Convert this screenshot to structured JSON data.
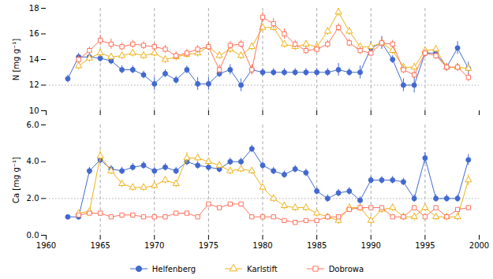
{
  "chart_data": [
    {
      "type": "line",
      "ylabel": "N [mg g⁻¹]",
      "xlim": [
        1960,
        2000
      ],
      "xticks": [
        1960,
        1965,
        1970,
        1975,
        1980,
        1985,
        1990,
        1995,
        2000
      ],
      "ylim": [
        10,
        18
      ],
      "yticks": [
        10,
        12,
        14,
        16,
        18
      ],
      "tick_labels": "y",
      "vlines": [
        1965,
        1970,
        1975,
        1980,
        1985,
        1990,
        1995
      ],
      "hline": 12,
      "series": [
        {
          "name": "Helfenberg",
          "marker": "circle",
          "x": [
            1962,
            1963,
            1964,
            1965,
            1966,
            1967,
            1968,
            1969,
            1970,
            1971,
            1972,
            1973,
            1974,
            1975,
            1976,
            1977,
            1978,
            1979,
            1980,
            1981,
            1982,
            1983,
            1984,
            1985,
            1986,
            1987,
            1988,
            1989,
            1990,
            1991,
            1992,
            1993,
            1994,
            1995,
            1996,
            1997,
            1998,
            1999
          ],
          "values": [
            12.5,
            14.2,
            14.2,
            14.1,
            13.9,
            13.2,
            13.2,
            12.8,
            12.1,
            12.9,
            12.4,
            13.2,
            12.1,
            12.1,
            12.9,
            13.2,
            12.0,
            13.2,
            13.0,
            13.0,
            13.0,
            13.0,
            13.0,
            13.0,
            13.0,
            13.2,
            13.0,
            13.0,
            14.9,
            15.3,
            14.0,
            12.0,
            12.0,
            14.5,
            14.5,
            13.4,
            14.9,
            13.3
          ],
          "errors": [
            0.3,
            0.3,
            0.3,
            0.3,
            0.3,
            0.3,
            0.3,
            0.3,
            0.5,
            0.3,
            0.3,
            0.3,
            0.5,
            0.5,
            0.3,
            0.4,
            0.5,
            0.3,
            0.3,
            0.3,
            0.3,
            0.3,
            0.3,
            0.3,
            0.3,
            0.5,
            0.3,
            0.5,
            0.5,
            0.5,
            0.3,
            0.5,
            0.6,
            0.3,
            0.3,
            0.3,
            0.5,
            0.5
          ]
        },
        {
          "name": "Karlstift",
          "marker": "triangle-open",
          "x": [
            1963,
            1964,
            1965,
            1966,
            1967,
            1968,
            1969,
            1970,
            1971,
            1972,
            1973,
            1974,
            1975,
            1976,
            1977,
            1978,
            1979,
            1980,
            1981,
            1982,
            1983,
            1984,
            1985,
            1986,
            1987,
            1988,
            1989,
            1990,
            1991,
            1992,
            1993,
            1994,
            1995,
            1996,
            1997,
            1998,
            1999
          ],
          "values": [
            13.5,
            14.1,
            14.5,
            14.2,
            14.3,
            14.5,
            14.3,
            14.5,
            14.0,
            14.2,
            14.4,
            14.5,
            15.0,
            14.3,
            14.8,
            14.3,
            15.0,
            16.5,
            16.5,
            15.2,
            15.0,
            15.2,
            15.0,
            16.2,
            17.7,
            16.2,
            15.0,
            15.0,
            15.3,
            14.7,
            13.4,
            13.4,
            14.7,
            14.8,
            13.4,
            13.4,
            13.3
          ],
          "errors": [
            0.3,
            0.3,
            0.3,
            0.3,
            0.3,
            0.3,
            0.3,
            0.3,
            0.3,
            0.3,
            0.3,
            0.3,
            0.3,
            0.3,
            0.3,
            0.3,
            0.3,
            0.3,
            0.3,
            0.3,
            0.3,
            0.3,
            0.3,
            0.3,
            0.3,
            0.3,
            0.3,
            0.3,
            0.3,
            0.3,
            0.3,
            0.3,
            0.3,
            0.3,
            0.3,
            0.3,
            0.3
          ]
        },
        {
          "name": "Dobrowa",
          "marker": "square-open",
          "x": [
            1963,
            1964,
            1965,
            1966,
            1967,
            1968,
            1969,
            1970,
            1971,
            1972,
            1973,
            1974,
            1975,
            1976,
            1977,
            1978,
            1979,
            1980,
            1981,
            1982,
            1983,
            1984,
            1985,
            1986,
            1987,
            1988,
            1989,
            1990,
            1991,
            1992,
            1993,
            1994,
            1995,
            1996,
            1997,
            1998,
            1999
          ],
          "values": [
            14.0,
            14.7,
            15.5,
            15.2,
            15.0,
            15.2,
            15.1,
            15.0,
            14.8,
            14.3,
            14.5,
            14.8,
            15.0,
            13.2,
            15.1,
            15.2,
            13.2,
            17.3,
            16.8,
            16.0,
            15.2,
            14.7,
            14.8,
            15.2,
            16.5,
            15.3,
            14.7,
            14.5,
            15.3,
            15.2,
            13.2,
            12.8,
            14.5,
            14.3,
            13.4,
            13.4,
            12.6
          ],
          "errors": [
            0.3,
            0.3,
            0.4,
            0.4,
            0.3,
            0.3,
            0.3,
            0.3,
            0.3,
            0.3,
            0.3,
            0.3,
            0.3,
            0.4,
            0.3,
            0.3,
            0.4,
            0.4,
            0.4,
            0.4,
            0.3,
            0.3,
            0.3,
            0.3,
            0.3,
            0.3,
            0.3,
            0.3,
            0.4,
            0.3,
            0.3,
            0.3,
            0.3,
            0.3,
            0.3,
            0.3,
            0.3
          ]
        }
      ]
    },
    {
      "type": "line",
      "ylabel": "Ca [mg g⁻¹]",
      "xlim": [
        1960,
        2000
      ],
      "xticks": [
        1960,
        1965,
        1970,
        1975,
        1980,
        1985,
        1990,
        1995,
        2000
      ],
      "ylim": [
        0,
        6
      ],
      "yticks": [
        0,
        2,
        4,
        6
      ],
      "legend": "bottom",
      "vlines": [
        1965,
        1970,
        1975,
        1980,
        1985,
        1990,
        1995
      ],
      "hline": 2,
      "series": [
        {
          "name": "Helfenberg",
          "marker": "circle",
          "x": [
            1962,
            1963,
            1964,
            1965,
            1966,
            1967,
            1968,
            1969,
            1970,
            1971,
            1972,
            1973,
            1974,
            1975,
            1976,
            1977,
            1978,
            1979,
            1980,
            1981,
            1982,
            1983,
            1984,
            1985,
            1986,
            1987,
            1988,
            1989,
            1990,
            1991,
            1992,
            1993,
            1994,
            1995,
            1996,
            1997,
            1998,
            1999
          ],
          "values": [
            1.0,
            1.0,
            3.5,
            4.1,
            3.6,
            3.5,
            3.7,
            3.8,
            3.5,
            3.7,
            3.5,
            4.0,
            3.8,
            3.7,
            3.6,
            4.0,
            4.0,
            4.7,
            3.8,
            3.5,
            3.3,
            3.6,
            3.4,
            2.4,
            2.0,
            2.3,
            2.4,
            1.9,
            3.0,
            3.0,
            3.0,
            2.9,
            2.0,
            4.2,
            2.0,
            2.0,
            2.0,
            4.1
          ],
          "errors": [
            0.1,
            0.1,
            0.2,
            0.2,
            0.2,
            0.2,
            0.2,
            0.2,
            0.2,
            0.2,
            0.2,
            0.2,
            0.2,
            0.2,
            0.2,
            0.2,
            0.2,
            0.2,
            0.2,
            0.2,
            0.2,
            0.2,
            0.2,
            0.2,
            0.2,
            0.2,
            0.2,
            0.2,
            0.2,
            0.2,
            0.2,
            0.2,
            0.2,
            0.3,
            0.2,
            0.2,
            0.2,
            0.3
          ]
        },
        {
          "name": "Karlstift",
          "marker": "triangle-open",
          "x": [
            1963,
            1964,
            1965,
            1966,
            1967,
            1968,
            1969,
            1970,
            1971,
            1972,
            1973,
            1974,
            1975,
            1976,
            1977,
            1978,
            1979,
            1980,
            1981,
            1982,
            1983,
            1984,
            1985,
            1986,
            1987,
            1988,
            1989,
            1990,
            1991,
            1992,
            1993,
            1994,
            1995,
            1996,
            1997,
            1998,
            1999
          ],
          "values": [
            1.2,
            1.3,
            4.3,
            3.5,
            2.8,
            2.6,
            2.6,
            2.7,
            3.0,
            2.8,
            4.2,
            4.2,
            4.0,
            3.8,
            3.5,
            3.6,
            3.5,
            2.6,
            2.0,
            1.6,
            1.5,
            1.5,
            1.2,
            1.0,
            0.8,
            1.5,
            1.5,
            0.8,
            1.4,
            1.5,
            1.0,
            1.0,
            1.5,
            1.0,
            1.0,
            1.0,
            3.0
          ],
          "errors": [
            0.1,
            0.1,
            0.3,
            0.2,
            0.2,
            0.2,
            0.2,
            0.2,
            0.2,
            0.2,
            0.3,
            0.2,
            0.2,
            0.2,
            0.2,
            0.2,
            0.2,
            0.2,
            0.2,
            0.2,
            0.2,
            0.2,
            0.2,
            0.2,
            0.2,
            0.2,
            0.2,
            0.2,
            0.2,
            0.2,
            0.2,
            0.2,
            0.2,
            0.2,
            0.2,
            0.2,
            0.3
          ]
        },
        {
          "name": "Dobrowa",
          "marker": "square-open",
          "x": [
            1963,
            1964,
            1965,
            1966,
            1967,
            1968,
            1969,
            1970,
            1971,
            1972,
            1973,
            1974,
            1975,
            1976,
            1977,
            1978,
            1979,
            1980,
            1981,
            1982,
            1983,
            1984,
            1985,
            1986,
            1987,
            1988,
            1989,
            1990,
            1991,
            1992,
            1993,
            1994,
            1995,
            1996,
            1997,
            1998,
            1999
          ],
          "values": [
            1.1,
            1.2,
            1.2,
            1.0,
            1.1,
            1.1,
            1.0,
            1.0,
            1.0,
            1.2,
            1.2,
            1.0,
            1.7,
            1.5,
            1.7,
            1.7,
            1.0,
            1.0,
            1.0,
            0.8,
            0.7,
            0.8,
            0.8,
            1.0,
            1.0,
            1.4,
            1.5,
            1.5,
            1.5,
            1.0,
            1.0,
            1.5,
            1.0,
            1.5,
            1.0,
            1.4,
            1.5
          ],
          "errors": [
            0.1,
            0.1,
            0.1,
            0.1,
            0.1,
            0.1,
            0.1,
            0.1,
            0.1,
            0.1,
            0.1,
            0.1,
            0.1,
            0.1,
            0.1,
            0.1,
            0.1,
            0.1,
            0.1,
            0.1,
            0.1,
            0.1,
            0.1,
            0.1,
            0.1,
            0.1,
            0.1,
            0.1,
            0.1,
            0.1,
            0.1,
            0.1,
            0.1,
            0.1,
            0.1,
            0.1,
            0.1
          ]
        }
      ]
    }
  ]
}
